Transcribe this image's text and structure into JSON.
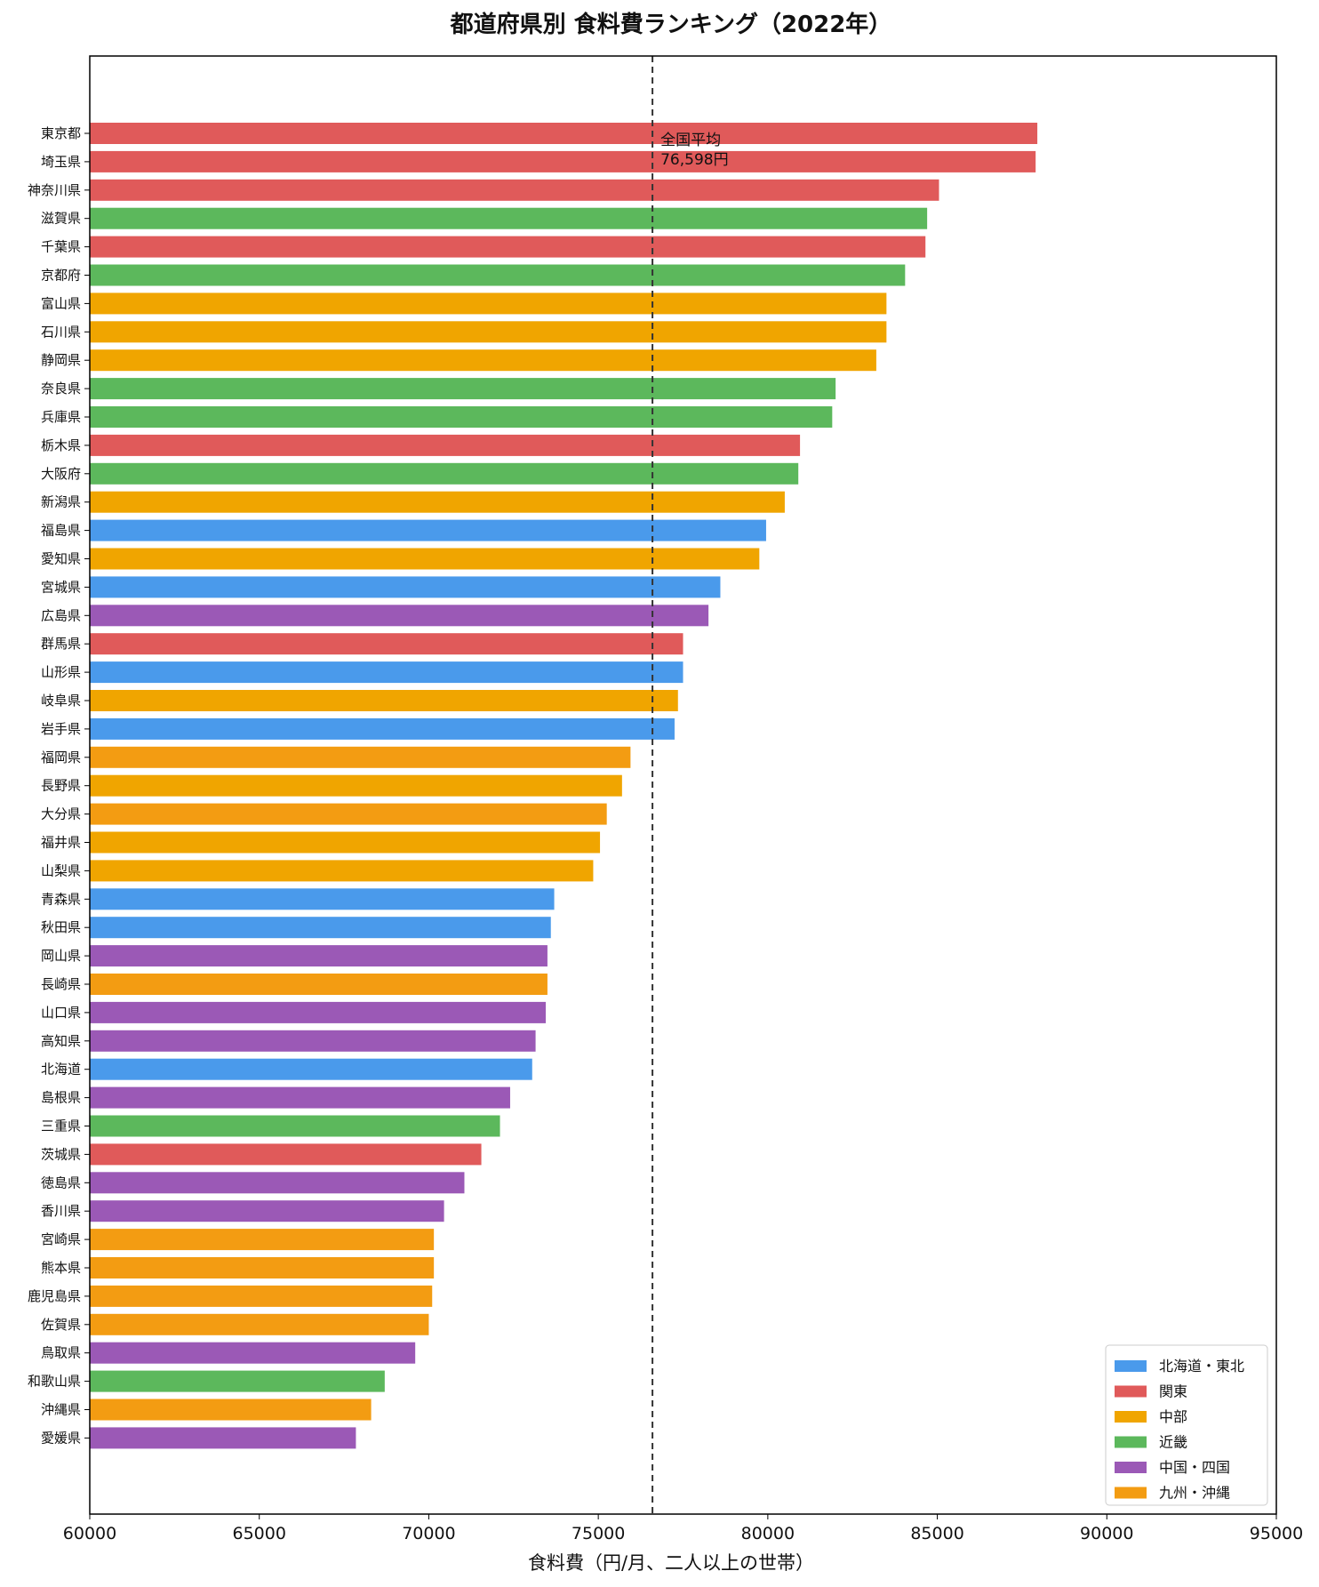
{
  "chart_data": {
    "type": "bar",
    "orientation": "horizontal",
    "title": "都道府県別 食料費ランキング（2022年）",
    "xlabel": "食料費（円/月、二人以上の世帯）",
    "ylabel": "",
    "xlim": [
      60000,
      95000
    ],
    "xticks": [
      "60000",
      "65000",
      "70000",
      "75000",
      "80000",
      "85000",
      "90000",
      "95000"
    ],
    "grid": false,
    "legend_position": "lower-right",
    "average": {
      "value": 76598,
      "label_line1": "全国平均",
      "label_line2": "76,598円"
    },
    "regions": [
      {
        "name": "北海道・東北",
        "color": "#4a9aeb"
      },
      {
        "name": "関東",
        "color": "#e05a5a"
      },
      {
        "name": "中部",
        "color": "#f0a500"
      },
      {
        "name": "近畿",
        "color": "#5cb85c"
      },
      {
        "name": "中国・四国",
        "color": "#9b59b6"
      },
      {
        "name": "九州・沖縄",
        "color": "#f39c12"
      }
    ],
    "categories": [
      "東京都",
      "埼玉県",
      "神奈川県",
      "滋賀県",
      "千葉県",
      "京都府",
      "富山県",
      "石川県",
      "静岡県",
      "奈良県",
      "兵庫県",
      "栃木県",
      "大阪府",
      "新潟県",
      "福島県",
      "愛知県",
      "宮城県",
      "広島県",
      "群馬県",
      "山形県",
      "岐阜県",
      "岩手県",
      "福岡県",
      "長野県",
      "大分県",
      "福井県",
      "山梨県",
      "青森県",
      "秋田県",
      "岡山県",
      "長崎県",
      "山口県",
      "高知県",
      "北海道",
      "島根県",
      "三重県",
      "茨城県",
      "徳島県",
      "香川県",
      "宮崎県",
      "熊本県",
      "鹿児島県",
      "佐賀県",
      "鳥取県",
      "和歌山県",
      "沖縄県",
      "愛媛県"
    ],
    "values": [
      87950,
      87900,
      85050,
      84700,
      84650,
      84050,
      83500,
      83500,
      83200,
      82000,
      81900,
      80950,
      80900,
      80500,
      79950,
      79750,
      78600,
      78250,
      77500,
      77500,
      77350,
      77250,
      75950,
      75700,
      75250,
      75050,
      74850,
      73700,
      73600,
      73500,
      73500,
      73450,
      73150,
      73050,
      72400,
      72100,
      71550,
      71050,
      70450,
      70150,
      70150,
      70100,
      70000,
      69600,
      68700,
      68300,
      67850
    ],
    "region_index": [
      1,
      1,
      1,
      3,
      1,
      3,
      2,
      2,
      2,
      3,
      3,
      1,
      3,
      2,
      0,
      2,
      0,
      4,
      1,
      0,
      2,
      0,
      5,
      2,
      5,
      2,
      2,
      0,
      0,
      4,
      5,
      4,
      4,
      0,
      4,
      3,
      1,
      4,
      4,
      5,
      5,
      5,
      5,
      4,
      3,
      5,
      4
    ]
  }
}
